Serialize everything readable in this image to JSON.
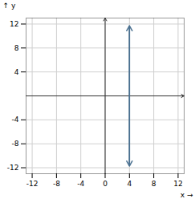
{
  "chart_data": {
    "type": "line",
    "xlabel": "x",
    "ylabel": "y",
    "x": [
      4,
      4
    ],
    "values": [
      -11.7,
      11.7
    ],
    "color": "#4a7090",
    "xlim": [
      -13,
      13
    ],
    "ylim": [
      -13,
      13
    ],
    "xticks": [
      -12,
      -8,
      -4,
      0,
      4,
      8,
      12
    ],
    "yticks": [
      -12,
      -8,
      -4,
      4,
      8,
      12
    ],
    "grid": true
  }
}
